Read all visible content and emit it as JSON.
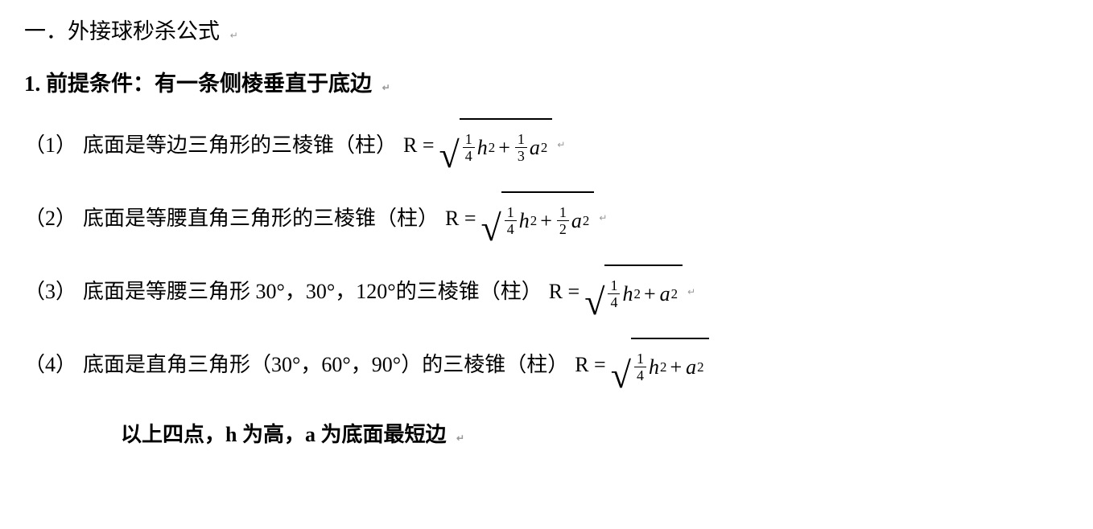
{
  "title": "一．外接球秒杀公式",
  "section": "1. 前提条件：有一条侧棱垂直于底边",
  "items": [
    {
      "num": "（1）",
      "text": "底面是等边三角形的三棱锥（柱）",
      "R_label": "R =",
      "frac1_num": "1",
      "frac1_den": "4",
      "var1": "h",
      "exp1": "2",
      "plus": "+",
      "has_frac2": true,
      "frac2_num": "1",
      "frac2_den": "3",
      "var2": "a",
      "exp2": "2"
    },
    {
      "num": "（2）",
      "text": "底面是等腰直角三角形的三棱锥（柱）",
      "R_label": "R =",
      "frac1_num": "1",
      "frac1_den": "4",
      "var1": "h",
      "exp1": "2",
      "plus": "+",
      "has_frac2": true,
      "frac2_num": "1",
      "frac2_den": "2",
      "var2": "a",
      "exp2": "2"
    },
    {
      "num": "（3）",
      "text": "底面是等腰三角形 30°，30°，120°的三棱锥（柱）",
      "R_label": "R =",
      "frac1_num": "1",
      "frac1_den": "4",
      "var1": "h",
      "exp1": "2",
      "plus": "+",
      "has_frac2": false,
      "var2": "a",
      "exp2": "2"
    },
    {
      "num": "（4）",
      "text": "底面是直角三角形（30°，60°，90°）的三棱锥（柱）",
      "R_label": "R =",
      "frac1_num": "1",
      "frac1_den": "4",
      "var1": "h",
      "exp1": "2",
      "plus": "+",
      "has_frac2": false,
      "var2": "a",
      "exp2": "2"
    }
  ],
  "footer": "以上四点，h 为高，a 为底面最短边",
  "return_mark": "↵"
}
